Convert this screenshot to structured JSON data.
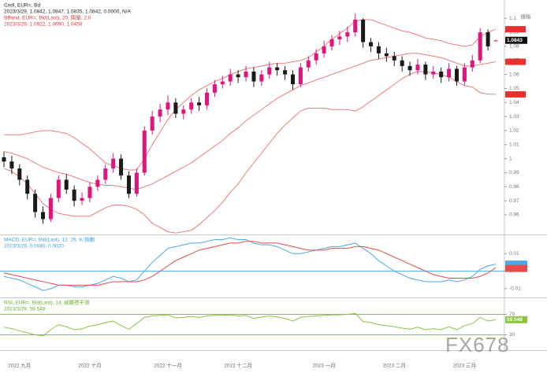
{
  "chart_data": [
    {
      "type": "candlestick",
      "title": "Cndl, EUR=, Bd",
      "subtitle": "2023/3/29, 1.0842, 1.0847, 1.0835, 1.0842, 0.0000, N/A",
      "price_axis_label": "價格",
      "watermark": "FX678",
      "categories": [
        null,
        null,
        "2022 九月",
        null,
        null,
        null,
        null,
        null,
        null,
        null,
        null,
        "2022 十月",
        null,
        null,
        null,
        null,
        null,
        null,
        null,
        null,
        null,
        "2022 十一月",
        null,
        null,
        null,
        null,
        null,
        null,
        null,
        null,
        "2022 十二月",
        null,
        null,
        null,
        null,
        null,
        null,
        null,
        null,
        null,
        null,
        "2023 一月",
        null,
        null,
        null,
        null,
        null,
        null,
        null,
        null,
        "2023 二月",
        null,
        null,
        null,
        null,
        null,
        null,
        null,
        null,
        "2023 三月",
        null,
        null,
        null,
        null
      ],
      "open": [
        1.001,
        0.998,
        0.993,
        0.985,
        0.975,
        0.962,
        0.957,
        0.972,
        0.985,
        0.978,
        0.97,
        0.972,
        0.98,
        0.985,
        0.993,
        1.0,
        0.988,
        0.975,
        0.99,
        1.02,
        1.03,
        1.035,
        1.04,
        1.032,
        1.035,
        1.04,
        1.038,
        1.047,
        1.053,
        1.055,
        1.06,
        1.058,
        1.062,
        1.055,
        1.06,
        1.065,
        1.063,
        1.06,
        1.053,
        1.065,
        1.07,
        1.075,
        1.08,
        1.085,
        1.087,
        1.09,
        1.099,
        1.083,
        1.08,
        1.075,
        1.073,
        1.07,
        1.066,
        1.063,
        1.067,
        1.06,
        1.062,
        1.058,
        1.064,
        1.055,
        1.065,
        1.07,
        1.09,
        1.0842
      ],
      "high": [
        1.005,
        1.002,
        0.996,
        0.988,
        0.978,
        0.966,
        0.975,
        0.988,
        0.989,
        0.981,
        0.976,
        0.983,
        0.988,
        0.996,
        1.004,
        1.003,
        0.991,
        0.993,
        1.023,
        1.034,
        1.039,
        1.045,
        1.043,
        1.038,
        1.043,
        1.044,
        1.05,
        1.056,
        1.059,
        1.064,
        1.063,
        1.066,
        1.065,
        1.063,
        1.069,
        1.068,
        1.066,
        1.063,
        1.068,
        1.073,
        1.078,
        1.084,
        1.088,
        1.091,
        1.094,
        1.1033,
        1.1,
        1.086,
        1.083,
        1.079,
        1.076,
        1.073,
        1.069,
        1.071,
        1.069,
        1.066,
        1.065,
        1.068,
        1.066,
        1.068,
        1.074,
        1.093,
        1.092,
        1.0847
      ],
      "low": [
        0.994,
        0.989,
        0.981,
        0.971,
        0.958,
        0.9536,
        0.955,
        0.969,
        0.975,
        0.966,
        0.967,
        0.969,
        0.977,
        0.982,
        0.99,
        0.985,
        0.972,
        0.973,
        0.988,
        1.017,
        1.026,
        1.031,
        1.029,
        1.028,
        1.032,
        1.034,
        1.035,
        1.044,
        1.05,
        1.052,
        1.054,
        1.055,
        1.051,
        1.052,
        1.057,
        1.059,
        1.056,
        1.049,
        1.051,
        1.062,
        1.067,
        1.072,
        1.077,
        1.081,
        1.083,
        1.087,
        1.079,
        1.076,
        1.071,
        1.069,
        1.066,
        1.062,
        1.059,
        1.06,
        1.056,
        1.057,
        1.054,
        1.055,
        1.052,
        1.052,
        1.062,
        1.068,
        1.077,
        1.0835
      ],
      "close": [
        0.998,
        0.993,
        0.985,
        0.975,
        0.962,
        0.957,
        0.972,
        0.985,
        0.978,
        0.97,
        0.972,
        0.98,
        0.985,
        0.993,
        1.0,
        0.988,
        0.975,
        0.99,
        1.02,
        1.03,
        1.035,
        1.04,
        1.032,
        1.035,
        1.04,
        1.038,
        1.047,
        1.053,
        1.055,
        1.06,
        1.058,
        1.062,
        1.055,
        1.06,
        1.065,
        1.063,
        1.06,
        1.053,
        1.065,
        1.07,
        1.075,
        1.08,
        1.085,
        1.087,
        1.09,
        1.099,
        1.083,
        1.08,
        1.075,
        1.073,
        1.07,
        1.066,
        1.063,
        1.067,
        1.06,
        1.062,
        1.058,
        1.064,
        1.055,
        1.065,
        1.07,
        1.09,
        1.08,
        1.0842
      ],
      "up_color": "#e2137b",
      "down_color": "#1a1a1a",
      "bollinger": {
        "title": "BBand, EUR=, Bid(Last), 20, 簡單, 2.0",
        "subtitle": "2023/3/29, 1.0922, 1.0690, 1.0458",
        "color": "#f26d6d",
        "upper": [
          1.017,
          1.017,
          1.017,
          1.018,
          1.019,
          1.02,
          1.02,
          1.019,
          1.018,
          1.015,
          1.011,
          1.007,
          1.002,
          0.997,
          0.995,
          0.993,
          0.992,
          0.992,
          1.0,
          1.01,
          1.019,
          1.028,
          1.035,
          1.04,
          1.045,
          1.049,
          1.052,
          1.055,
          1.057,
          1.06,
          1.062,
          1.064,
          1.065,
          1.066,
          1.067,
          1.068,
          1.068,
          1.069,
          1.07,
          1.072,
          1.076,
          1.08,
          1.085,
          1.089,
          1.093,
          1.098,
          1.099,
          1.099,
          1.097,
          1.095,
          1.093,
          1.091,
          1.09,
          1.088,
          1.086,
          1.085,
          1.084,
          1.082,
          1.081,
          1.08,
          1.081,
          1.087,
          1.09,
          1.0922
        ],
        "middle": [
          1.005,
          1.004,
          1.002,
          1.0,
          0.997,
          0.994,
          0.992,
          0.99,
          0.989,
          0.987,
          0.985,
          0.983,
          0.982,
          0.981,
          0.981,
          0.98,
          0.979,
          0.978,
          0.98,
          0.982,
          0.985,
          0.988,
          0.991,
          0.994,
          0.997,
          1.001,
          1.005,
          1.009,
          1.013,
          1.018,
          1.022,
          1.027,
          1.031,
          1.035,
          1.039,
          1.043,
          1.046,
          1.049,
          1.052,
          1.054,
          1.056,
          1.058,
          1.06,
          1.062,
          1.064,
          1.066,
          1.068,
          1.07,
          1.071,
          1.072,
          1.073,
          1.074,
          1.075,
          1.075,
          1.074,
          1.073,
          1.072,
          1.07,
          1.068,
          1.066,
          1.066,
          1.067,
          1.068,
          1.069
        ],
        "lower": [
          0.993,
          0.991,
          0.987,
          0.982,
          0.975,
          0.968,
          0.964,
          0.961,
          0.96,
          0.959,
          0.959,
          0.959,
          0.962,
          0.965,
          0.967,
          0.967,
          0.966,
          0.964,
          0.96,
          0.954,
          0.951,
          0.948,
          0.947,
          0.948,
          0.949,
          0.953,
          0.958,
          0.963,
          0.969,
          0.976,
          0.982,
          0.99,
          0.997,
          1.004,
          1.011,
          1.018,
          1.024,
          1.029,
          1.034,
          1.036,
          1.036,
          1.036,
          1.035,
          1.035,
          1.035,
          1.034,
          1.037,
          1.041,
          1.045,
          1.049,
          1.053,
          1.057,
          1.06,
          1.062,
          1.062,
          1.061,
          1.06,
          1.058,
          1.055,
          1.052,
          1.051,
          1.047,
          1.046,
          1.0458
        ]
      },
      "price_tag": 1.0843,
      "ylim": [
        0.946,
        1.113
      ],
      "yticks": [
        0.96,
        0.97,
        0.98,
        0.99,
        1,
        1.01,
        1.02,
        1.03,
        1.04,
        1.05,
        1.06,
        1.07,
        1.08,
        1.09,
        1.1
      ]
    },
    {
      "type": "line",
      "title": "MACD, EUR=, Bid(Last), 12, 26, 9, 指數",
      "subtitle": "2023/3/29, 0.0040, 0.0020",
      "title_color": "#3a9ee8",
      "zero_line_color": "#58b8f0",
      "series": [
        {
          "color": "#4aa8ee",
          "values": [
            -0.003,
            -0.004,
            -0.005,
            -0.007,
            -0.009,
            -0.011,
            -0.01,
            -0.008,
            -0.008,
            -0.009,
            -0.009,
            -0.008,
            -0.007,
            -0.005,
            -0.003,
            -0.004,
            -0.006,
            -0.005,
            0.0,
            0.005,
            0.009,
            0.013,
            0.014,
            0.015,
            0.016,
            0.016,
            0.017,
            0.018,
            0.018,
            0.019,
            0.018,
            0.018,
            0.016,
            0.015,
            0.015,
            0.014,
            0.012,
            0.01,
            0.01,
            0.011,
            0.012,
            0.013,
            0.014,
            0.014,
            0.015,
            0.016,
            0.013,
            0.01,
            0.006,
            0.003,
            0.0,
            -0.002,
            -0.004,
            -0.005,
            -0.006,
            -0.006,
            -0.006,
            -0.005,
            -0.006,
            -0.005,
            -0.003,
            0.001,
            0.003,
            0.004
          ]
        },
        {
          "color": "#e84a4a",
          "values": [
            -0.001,
            -0.002,
            -0.003,
            -0.004,
            -0.005,
            -0.006,
            -0.007,
            -0.008,
            -0.008,
            -0.008,
            -0.008,
            -0.008,
            -0.008,
            -0.007,
            -0.006,
            -0.006,
            -0.006,
            -0.006,
            -0.005,
            -0.003,
            0.0,
            0.003,
            0.006,
            0.008,
            0.01,
            0.012,
            0.013,
            0.014,
            0.015,
            0.016,
            0.016,
            0.017,
            0.017,
            0.016,
            0.016,
            0.016,
            0.015,
            0.014,
            0.013,
            0.012,
            0.012,
            0.012,
            0.013,
            0.013,
            0.013,
            0.014,
            0.014,
            0.013,
            0.012,
            0.01,
            0.008,
            0.006,
            0.004,
            0.002,
            0.0,
            -0.002,
            -0.003,
            -0.004,
            -0.004,
            -0.004,
            -0.004,
            -0.003,
            -0.001,
            0.002
          ]
        }
      ],
      "ylim": [
        -0.015,
        0.02
      ],
      "yticks": [
        -0.01,
        0,
        0.01
      ]
    },
    {
      "type": "line",
      "title": "RSI, EUR=, Bid(Last), 14, 威爾德平滑",
      "subtitle": "2023/3/29, 59.548",
      "title_color": "#6aae2a",
      "grid_color": "#8cc63f",
      "series": [
        {
          "color": "#8cc63f",
          "values": [
            45,
            42,
            38,
            34,
            30,
            28,
            40,
            50,
            46,
            40,
            42,
            47,
            50,
            54,
            57,
            48,
            41,
            52,
            64,
            67,
            68,
            69,
            63,
            64,
            66,
            64,
            67,
            68,
            68,
            69,
            67,
            68,
            62,
            65,
            67,
            65,
            62,
            57,
            64,
            66,
            67,
            68,
            69,
            69,
            70,
            72,
            56,
            54,
            50,
            48,
            46,
            43,
            41,
            45,
            40,
            42,
            40,
            46,
            40,
            48,
            52,
            64,
            57,
            59.548
          ]
        }
      ],
      "ylim": [
        0,
        100
      ],
      "yticks": [
        30,
        70
      ]
    }
  ]
}
